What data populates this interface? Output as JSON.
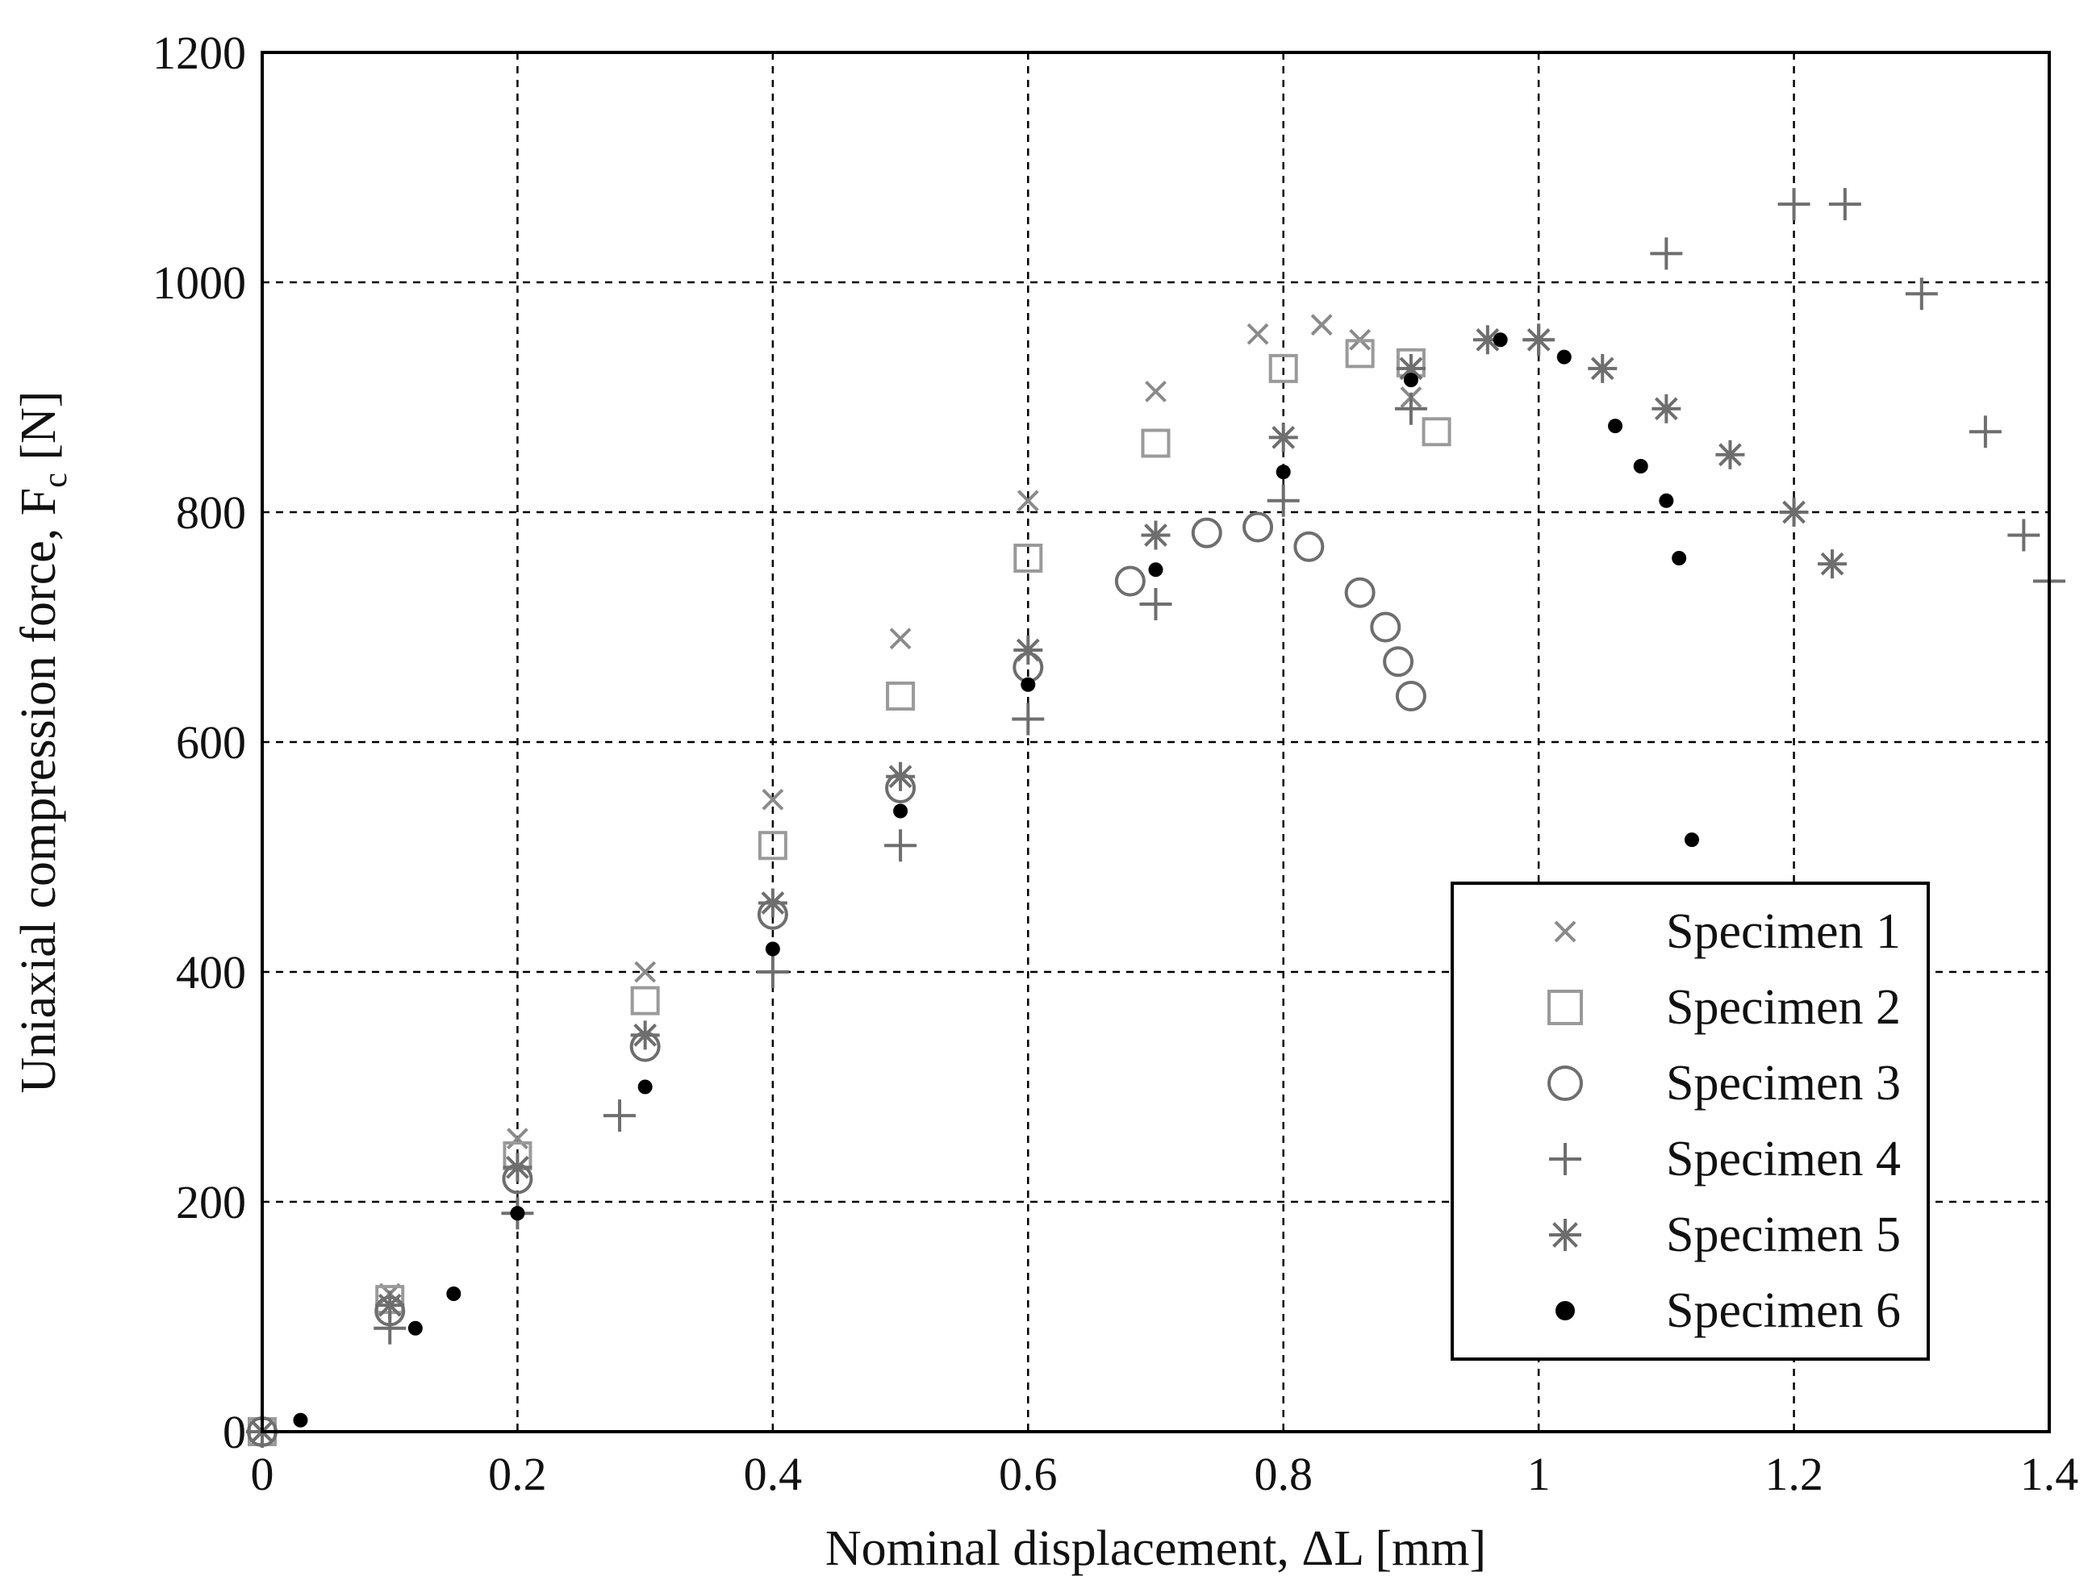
{
  "chart_data": {
    "type": "scatter",
    "title": "",
    "xlabel": "Nominal displacement, ΔL [mm]",
    "ylabel_main": "Uniaxial compression force, F",
    "ylabel_sub": "c",
    "ylabel_unit": " [N]",
    "xlim": [
      0,
      1.4
    ],
    "ylim": [
      0,
      1200
    ],
    "xticks": [
      0,
      0.2,
      0.4,
      0.6,
      0.8,
      1,
      1.2,
      1.4
    ],
    "xtick_labels": [
      "0",
      "0.2",
      "0.4",
      "0.6",
      "0.8",
      "1",
      "1.2",
      "1.4"
    ],
    "yticks": [
      0,
      200,
      400,
      600,
      800,
      1000,
      1200
    ],
    "ytick_labels": [
      "0",
      "200",
      "400",
      "600",
      "800",
      "1000",
      "1200"
    ],
    "grid": true,
    "legend_position": "bottom-right",
    "series": [
      {
        "name": "Specimen 1",
        "marker": "x",
        "color": "#8a8a8a",
        "x": [
          0,
          0.1,
          0.2,
          0.3,
          0.4,
          0.5,
          0.6,
          0.7,
          0.78,
          0.83,
          0.86,
          0.9
        ],
        "y": [
          0,
          120,
          255,
          400,
          550,
          690,
          810,
          905,
          955,
          963,
          950,
          900
        ]
      },
      {
        "name": "Specimen 2",
        "marker": "square",
        "color": "#9a9a9a",
        "x": [
          0,
          0.1,
          0.2,
          0.3,
          0.4,
          0.5,
          0.6,
          0.7,
          0.8,
          0.86,
          0.9,
          0.92
        ],
        "y": [
          0,
          115,
          240,
          375,
          510,
          640,
          760,
          860,
          925,
          938,
          930,
          870
        ]
      },
      {
        "name": "Specimen 3",
        "marker": "circle",
        "color": "#6e6e6e",
        "x": [
          0,
          0.1,
          0.2,
          0.3,
          0.4,
          0.5,
          0.6,
          0.68,
          0.74,
          0.78,
          0.82,
          0.86,
          0.88,
          0.89,
          0.9
        ],
        "y": [
          0,
          105,
          220,
          335,
          450,
          560,
          665,
          740,
          782,
          787,
          770,
          730,
          700,
          670,
          640
        ]
      },
      {
        "name": "Specimen 4",
        "marker": "plus",
        "color": "#6e6e6e",
        "x": [
          0,
          0.1,
          0.2,
          0.28,
          0.4,
          0.5,
          0.6,
          0.7,
          0.8,
          0.9,
          1.0,
          1.1,
          1.2,
          1.24,
          1.3,
          1.35,
          1.38,
          1.4
        ],
        "y": [
          0,
          90,
          190,
          275,
          400,
          510,
          620,
          720,
          810,
          890,
          950,
          1025,
          1068,
          1068,
          990,
          870,
          780,
          740
        ]
      },
      {
        "name": "Specimen 5",
        "marker": "asterisk",
        "color": "#6e6e6e",
        "x": [
          0,
          0.1,
          0.2,
          0.3,
          0.4,
          0.5,
          0.6,
          0.7,
          0.8,
          0.9,
          0.96,
          1.0,
          1.05,
          1.1,
          1.15,
          1.2,
          1.23
        ],
        "y": [
          0,
          110,
          230,
          345,
          460,
          570,
          680,
          780,
          865,
          925,
          950,
          950,
          925,
          890,
          850,
          800,
          755
        ]
      },
      {
        "name": "Specimen 6",
        "marker": "dot",
        "color": "#000000",
        "x": [
          0.03,
          0.12,
          0.15,
          0.2,
          0.3,
          0.4,
          0.5,
          0.6,
          0.7,
          0.8,
          0.9,
          0.97,
          1.02,
          1.06,
          1.08,
          1.1,
          1.11,
          1.12
        ],
        "y": [
          10,
          90,
          120,
          190,
          300,
          420,
          540,
          650,
          750,
          835,
          915,
          950,
          935,
          875,
          840,
          810,
          760,
          515
        ]
      }
    ]
  }
}
